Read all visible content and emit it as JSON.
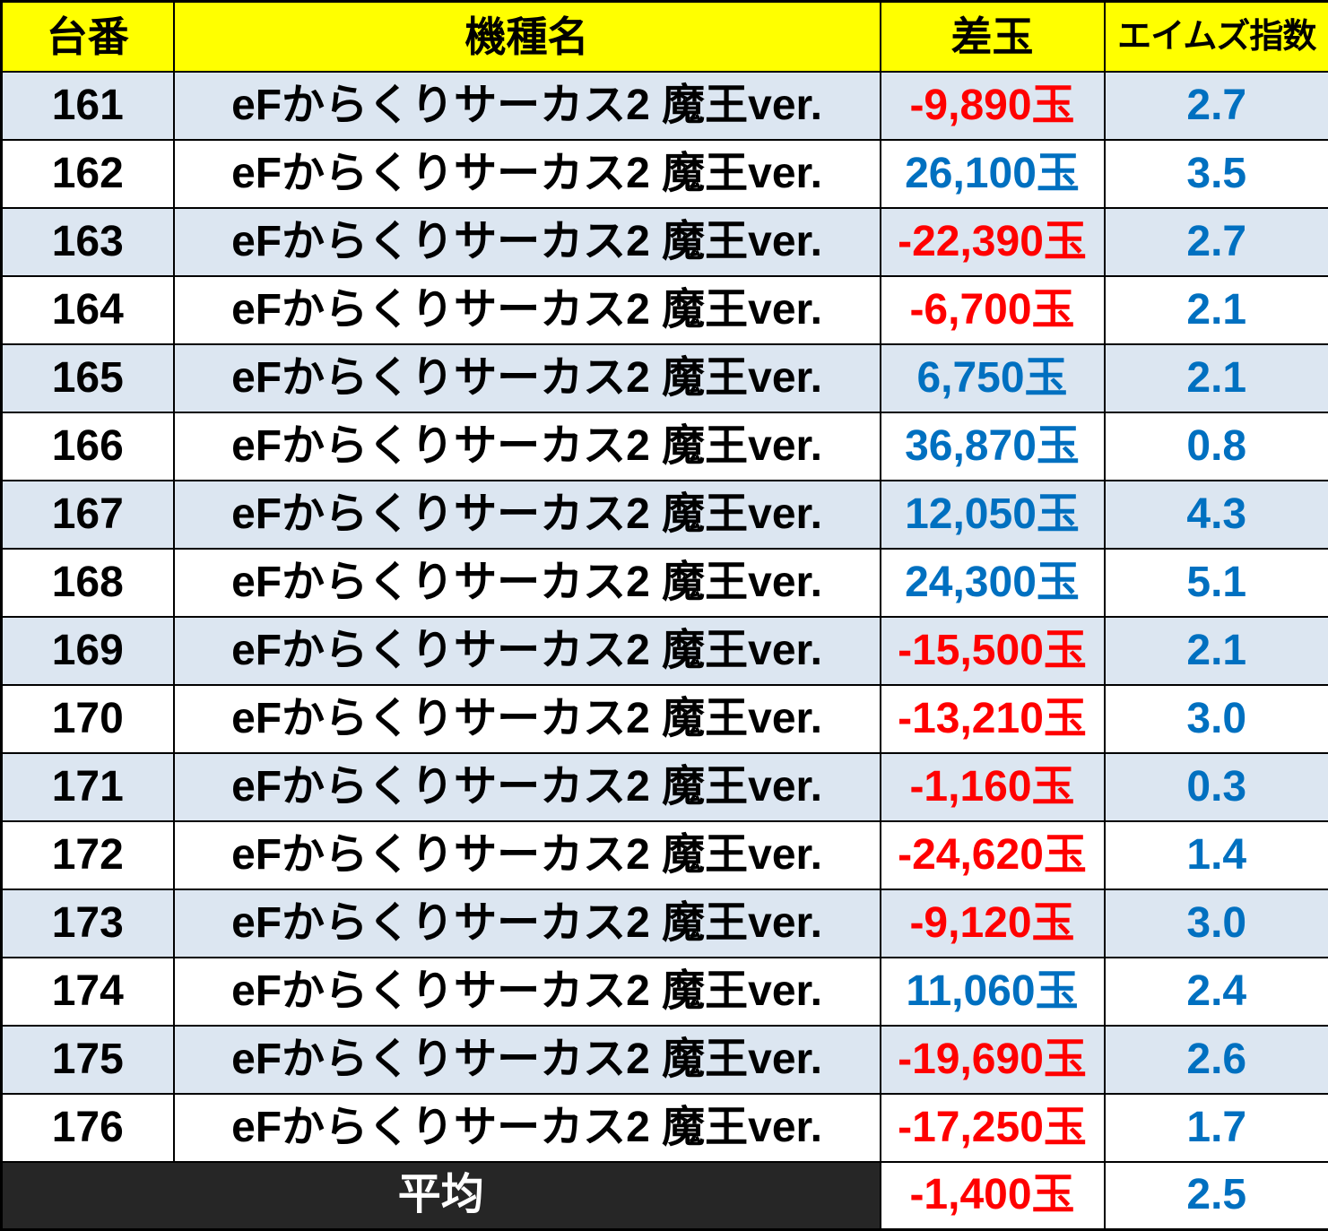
{
  "colors": {
    "header_bg": "#ffff00",
    "row_alt_bg": "#dce6f1",
    "row_bg": "#ffffff",
    "average_bg": "#262626",
    "negative": "#ff0000",
    "positive": "#0070c0",
    "border": "#000000"
  },
  "table": {
    "headers": [
      "台番",
      "機種名",
      "差玉",
      "エイムズ指数"
    ],
    "rows": [
      {
        "no": "161",
        "model": "eFからくりサーカス2 魔王ver.",
        "diff": "-9,890玉",
        "index": "2.7"
      },
      {
        "no": "162",
        "model": "eFからくりサーカス2 魔王ver.",
        "diff": "26,100玉",
        "index": "3.5"
      },
      {
        "no": "163",
        "model": "eFからくりサーカス2 魔王ver.",
        "diff": "-22,390玉",
        "index": "2.7"
      },
      {
        "no": "164",
        "model": "eFからくりサーカス2 魔王ver.",
        "diff": "-6,700玉",
        "index": "2.1"
      },
      {
        "no": "165",
        "model": "eFからくりサーカス2 魔王ver.",
        "diff": "6,750玉",
        "index": "2.1"
      },
      {
        "no": "166",
        "model": "eFからくりサーカス2 魔王ver.",
        "diff": "36,870玉",
        "index": "0.8"
      },
      {
        "no": "167",
        "model": "eFからくりサーカス2 魔王ver.",
        "diff": "12,050玉",
        "index": "4.3"
      },
      {
        "no": "168",
        "model": "eFからくりサーカス2 魔王ver.",
        "diff": "24,300玉",
        "index": "5.1"
      },
      {
        "no": "169",
        "model": "eFからくりサーカス2 魔王ver.",
        "diff": "-15,500玉",
        "index": "2.1"
      },
      {
        "no": "170",
        "model": "eFからくりサーカス2 魔王ver.",
        "diff": "-13,210玉",
        "index": "3.0"
      },
      {
        "no": "171",
        "model": "eFからくりサーカス2 魔王ver.",
        "diff": "-1,160玉",
        "index": "0.3"
      },
      {
        "no": "172",
        "model": "eFからくりサーカス2 魔王ver.",
        "diff": "-24,620玉",
        "index": "1.4"
      },
      {
        "no": "173",
        "model": "eFからくりサーカス2 魔王ver.",
        "diff": "-9,120玉",
        "index": "3.0"
      },
      {
        "no": "174",
        "model": "eFからくりサーカス2 魔王ver.",
        "diff": "11,060玉",
        "index": "2.4"
      },
      {
        "no": "175",
        "model": "eFからくりサーカス2 魔王ver.",
        "diff": "-19,690玉",
        "index": "2.6"
      },
      {
        "no": "176",
        "model": "eFからくりサーカス2 魔王ver.",
        "diff": "-17,250玉",
        "index": "1.7"
      }
    ],
    "average": {
      "label": "平均",
      "diff": "-1,400玉",
      "index": "2.5"
    }
  },
  "chart_data": {
    "type": "table",
    "columns": [
      "台番",
      "機種名",
      "差玉",
      "エイムズ指数"
    ],
    "rows": [
      [
        161,
        "eFからくりサーカス2 魔王ver.",
        -9890,
        2.7
      ],
      [
        162,
        "eFからくりサーカス2 魔王ver.",
        26100,
        3.5
      ],
      [
        163,
        "eFからくりサーカス2 魔王ver.",
        -22390,
        2.7
      ],
      [
        164,
        "eFからくりサーカス2 魔王ver.",
        -6700,
        2.1
      ],
      [
        165,
        "eFからくりサーカス2 魔王ver.",
        6750,
        2.1
      ],
      [
        166,
        "eFからくりサーカス2 魔王ver.",
        36870,
        0.8
      ],
      [
        167,
        "eFからくりサーカス2 魔王ver.",
        12050,
        4.3
      ],
      [
        168,
        "eFからくりサーカス2 魔王ver.",
        24300,
        5.1
      ],
      [
        169,
        "eFからくりサーカス2 魔王ver.",
        -15500,
        2.1
      ],
      [
        170,
        "eFからくりサーカス2 魔王ver.",
        -13210,
        3.0
      ],
      [
        171,
        "eFからくりサーカス2 魔王ver.",
        -1160,
        0.3
      ],
      [
        172,
        "eFからくりサーカス2 魔王ver.",
        -24620,
        1.4
      ],
      [
        173,
        "eFからくりサーカス2 魔王ver.",
        -9120,
        3.0
      ],
      [
        174,
        "eFからくりサーカス2 魔王ver.",
        11060,
        2.4
      ],
      [
        175,
        "eFからくりサーカス2 魔王ver.",
        -19690,
        2.6
      ],
      [
        176,
        "eFからくりサーカス2 魔王ver.",
        -17250,
        1.7
      ]
    ],
    "average_row": {
      "label": "平均",
      "diff_balls": -1400,
      "aims_index": 2.5
    },
    "value_color_rule": "negative diff red, positive diff blue, index always blue"
  }
}
